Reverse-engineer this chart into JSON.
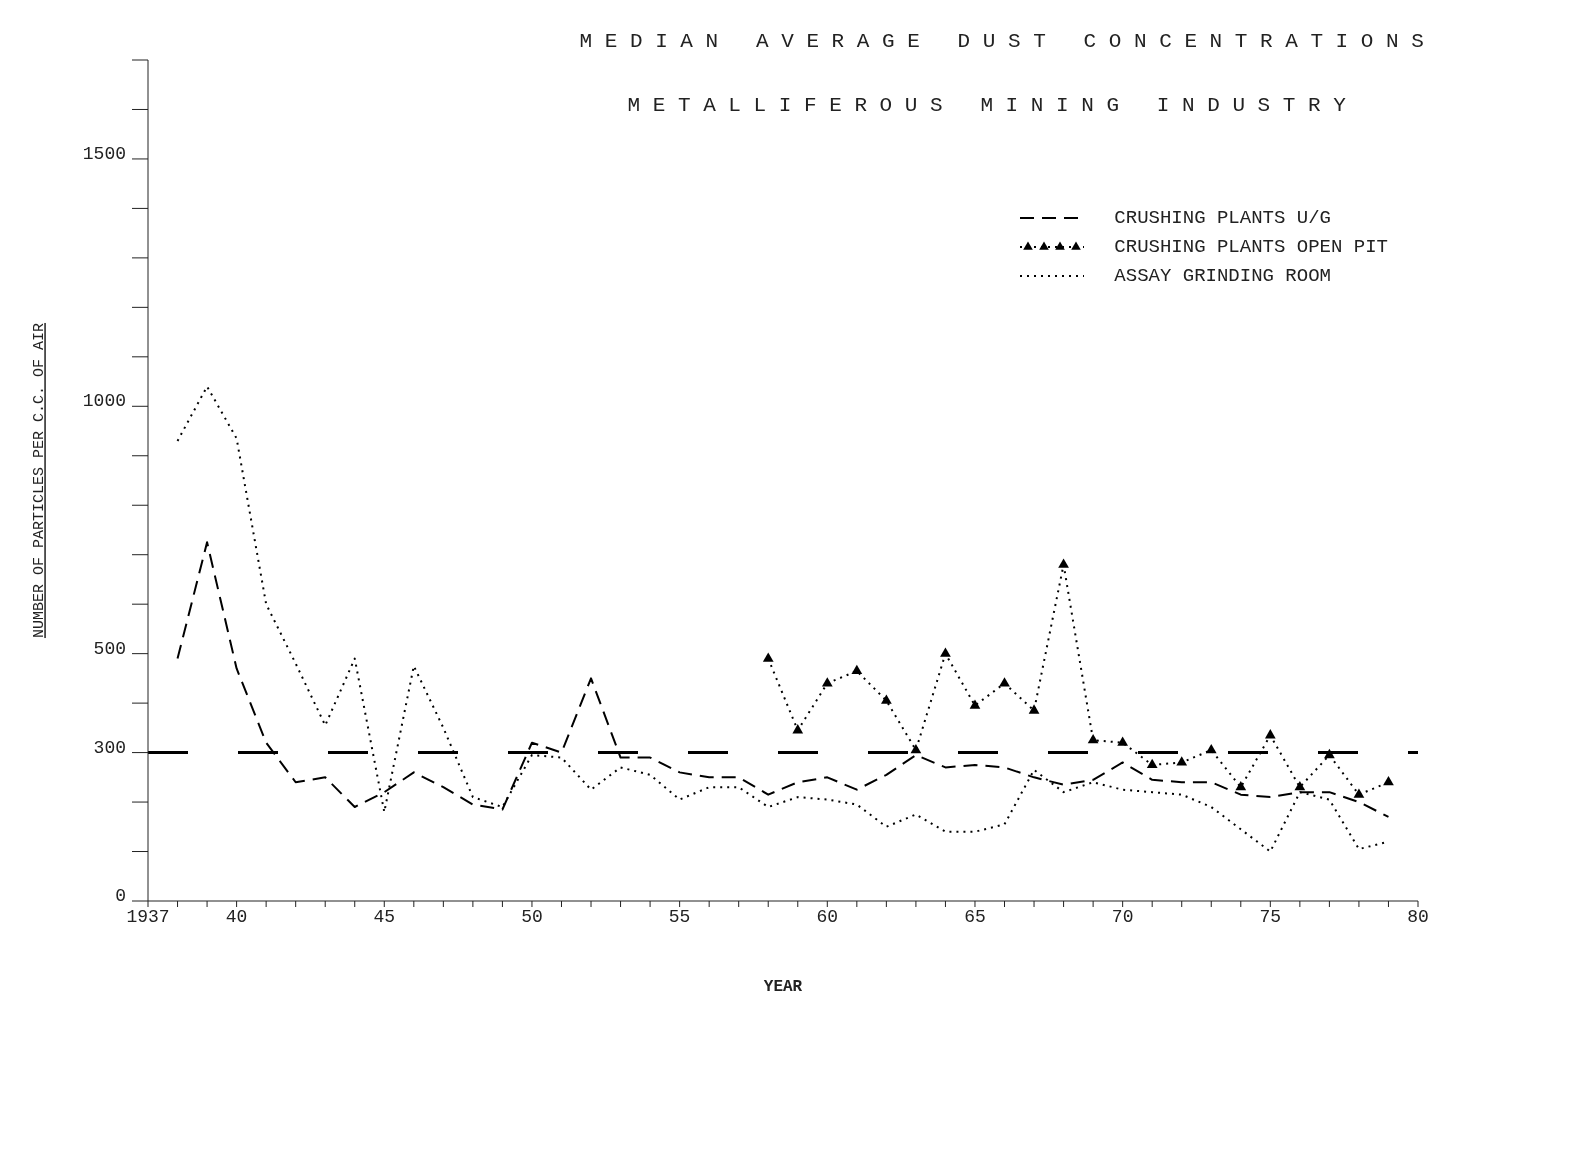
{
  "chart_data": {
    "type": "line",
    "title": "MEDIAN AVERAGE DUST CONCENTRATIONS",
    "subtitle": "METALLIFEROUS MINING INDUSTRY",
    "xlabel": "YEAR",
    "ylabel": "NUMBER OF PARTICLES PER C.C. OF AIR",
    "x": [
      1938,
      1939,
      1940,
      1941,
      1942,
      1943,
      1944,
      1945,
      1946,
      1947,
      1948,
      1949,
      1950,
      1951,
      1952,
      1953,
      1954,
      1955,
      1956,
      1957,
      1958,
      1959,
      1960,
      1961,
      1962,
      1963,
      1964,
      1965,
      1966,
      1967,
      1968,
      1969,
      1970,
      1971,
      1972,
      1973,
      1974,
      1975,
      1976,
      1977,
      1978,
      1979
    ],
    "series": [
      {
        "name": "CRUSHING PLANTS U/G",
        "color": "#000000",
        "line_style": "dashed",
        "marker": "none",
        "values": [
          490,
          725,
          470,
          320,
          240,
          250,
          190,
          220,
          260,
          230,
          195,
          185,
          320,
          300,
          450,
          290,
          290,
          260,
          250,
          250,
          215,
          240,
          250,
          225,
          255,
          295,
          270,
          275,
          270,
          250,
          235,
          245,
          280,
          245,
          240,
          240,
          215,
          210,
          220,
          220,
          200,
          170
        ]
      },
      {
        "name": "CRUSHING PLANTS OPEN PIT",
        "color": "#000000",
        "line_style": "dotted",
        "marker": "triangle",
        "values": [
          null,
          null,
          null,
          null,
          null,
          null,
          null,
          null,
          null,
          null,
          null,
          null,
          null,
          null,
          null,
          null,
          null,
          null,
          null,
          null,
          490,
          345,
          440,
          465,
          405,
          305,
          500,
          395,
          440,
          385,
          680,
          325,
          320,
          275,
          280,
          305,
          230,
          335,
          230,
          295,
          215,
          240
        ]
      },
      {
        "name": "ASSAY GRINDING ROOM",
        "color": "#000000",
        "line_style": "dotted",
        "marker": "none",
        "values": [
          930,
          1040,
          935,
          600,
          480,
          355,
          490,
          180,
          475,
          350,
          210,
          190,
          295,
          290,
          225,
          270,
          255,
          205,
          230,
          230,
          190,
          210,
          205,
          195,
          150,
          175,
          140,
          140,
          155,
          265,
          220,
          240,
          225,
          220,
          215,
          190,
          145,
          100,
          220,
          205,
          105,
          120
        ]
      }
    ],
    "xlim": [
      1937,
      1980
    ],
    "xticks": [
      {
        "value": 1937,
        "label": "1937"
      },
      {
        "value": 1938,
        "label": null
      },
      {
        "value": 1939,
        "label": null
      },
      {
        "value": 1940,
        "label": "40"
      },
      {
        "value": 1941,
        "label": null
      },
      {
        "value": 1942,
        "label": null
      },
      {
        "value": 1943,
        "label": null
      },
      {
        "value": 1944,
        "label": null
      },
      {
        "value": 1945,
        "label": "45"
      },
      {
        "value": 1946,
        "label": null
      },
      {
        "value": 1947,
        "label": null
      },
      {
        "value": 1948,
        "label": null
      },
      {
        "value": 1949,
        "label": null
      },
      {
        "value": 1950,
        "label": "50"
      },
      {
        "value": 1951,
        "label": null
      },
      {
        "value": 1952,
        "label": null
      },
      {
        "value": 1953,
        "label": null
      },
      {
        "value": 1954,
        "label": null
      },
      {
        "value": 1955,
        "label": "55"
      },
      {
        "value": 1956,
        "label": null
      },
      {
        "value": 1957,
        "label": null
      },
      {
        "value": 1958,
        "label": null
      },
      {
        "value": 1959,
        "label": null
      },
      {
        "value": 1960,
        "label": "60"
      },
      {
        "value": 1961,
        "label": null
      },
      {
        "value": 1962,
        "label": null
      },
      {
        "value": 1963,
        "label": null
      },
      {
        "value": 1964,
        "label": null
      },
      {
        "value": 1965,
        "label": "65"
      },
      {
        "value": 1966,
        "label": null
      },
      {
        "value": 1967,
        "label": null
      },
      {
        "value": 1968,
        "label": null
      },
      {
        "value": 1969,
        "label": null
      },
      {
        "value": 1970,
        "label": "70"
      },
      {
        "value": 1971,
        "label": null
      },
      {
        "value": 1972,
        "label": null
      },
      {
        "value": 1973,
        "label": null
      },
      {
        "value": 1974,
        "label": null
      },
      {
        "value": 1975,
        "label": "75"
      },
      {
        "value": 1976,
        "label": null
      },
      {
        "value": 1977,
        "label": null
      },
      {
        "value": 1978,
        "label": null
      },
      {
        "value": 1979,
        "label": null
      },
      {
        "value": 1980,
        "label": "80"
      }
    ],
    "ylim": [
      0,
      1700
    ],
    "yticks": [
      0,
      {
        "value": 100,
        "label": null
      },
      {
        "value": 200,
        "label": null
      },
      300,
      {
        "value": 400,
        "label": null
      },
      500,
      {
        "value": 600,
        "label": null
      },
      {
        "value": 700,
        "label": null
      },
      {
        "value": 800,
        "label": null
      },
      {
        "value": 900,
        "label": null
      },
      1000,
      {
        "value": 1100,
        "label": null
      },
      {
        "value": 1200,
        "label": null
      },
      {
        "value": 1300,
        "label": null
      },
      {
        "value": 1400,
        "label": null
      },
      1500,
      {
        "value": 1600,
        "label": null
      },
      {
        "value": 1700,
        "label": null
      }
    ],
    "ref_lines": [
      {
        "axis": "y",
        "value": 300,
        "color": "#000000",
        "line_style": "dashed"
      }
    ],
    "grid": false,
    "legend": "top right"
  }
}
